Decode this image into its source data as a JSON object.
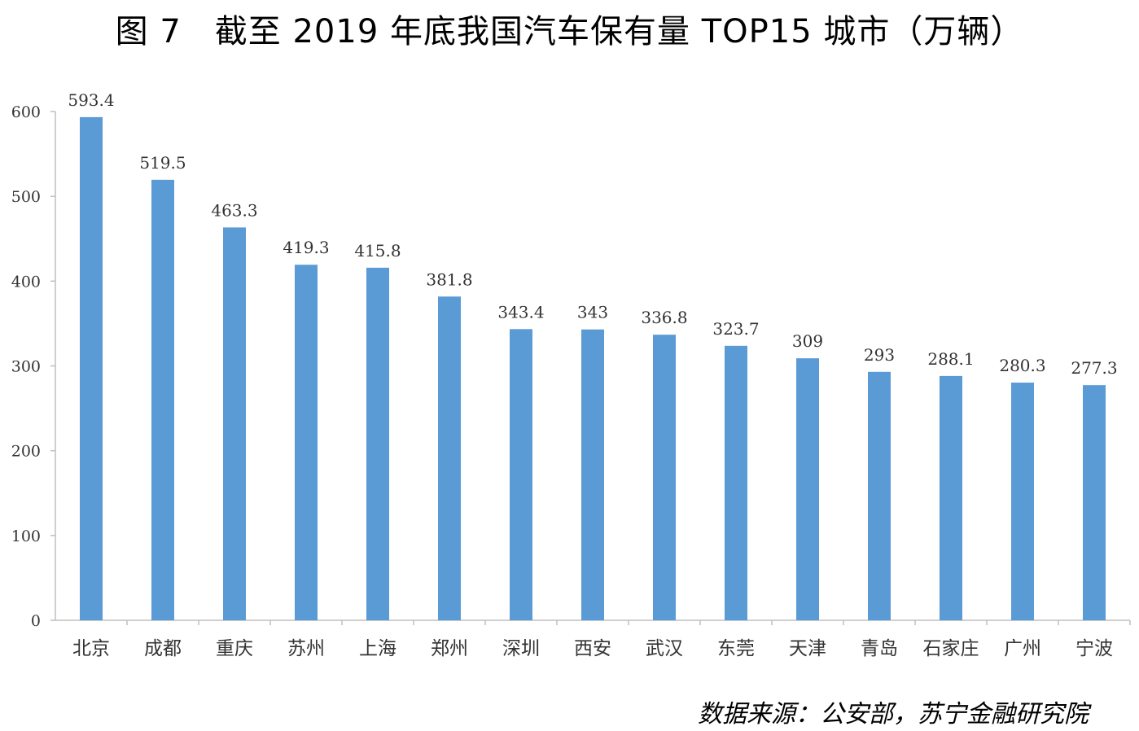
{
  "title": "图 7　截至 2019 年底我国汽车保有量 TOP15 城市（万辆）",
  "source": "数据来源：公安部，苏宁金融研究院",
  "chart_data": {
    "type": "bar",
    "categories": [
      "北京",
      "成都",
      "重庆",
      "苏州",
      "上海",
      "郑州",
      "深圳",
      "西安",
      "武汉",
      "东莞",
      "天津",
      "青岛",
      "石家庄",
      "广州",
      "宁波"
    ],
    "values": [
      593.4,
      519.5,
      463.3,
      419.3,
      415.8,
      381.8,
      343.4,
      343,
      336.8,
      323.7,
      309,
      293,
      288.1,
      280.3,
      277.3
    ],
    "value_labels": [
      "593.4",
      "519.5",
      "463.3",
      "419.3",
      "415.8",
      "381.8",
      "343.4",
      "343",
      "336.8",
      "323.7",
      "309",
      "293",
      "288.1",
      "280.3",
      "277.3"
    ],
    "yticks": [
      0,
      100,
      200,
      300,
      400,
      500,
      600
    ],
    "ylim": [
      0,
      600
    ],
    "bar_color": "#5b9bd5",
    "axis_color": "#bfbfbf",
    "grid": false,
    "legend": "none"
  }
}
